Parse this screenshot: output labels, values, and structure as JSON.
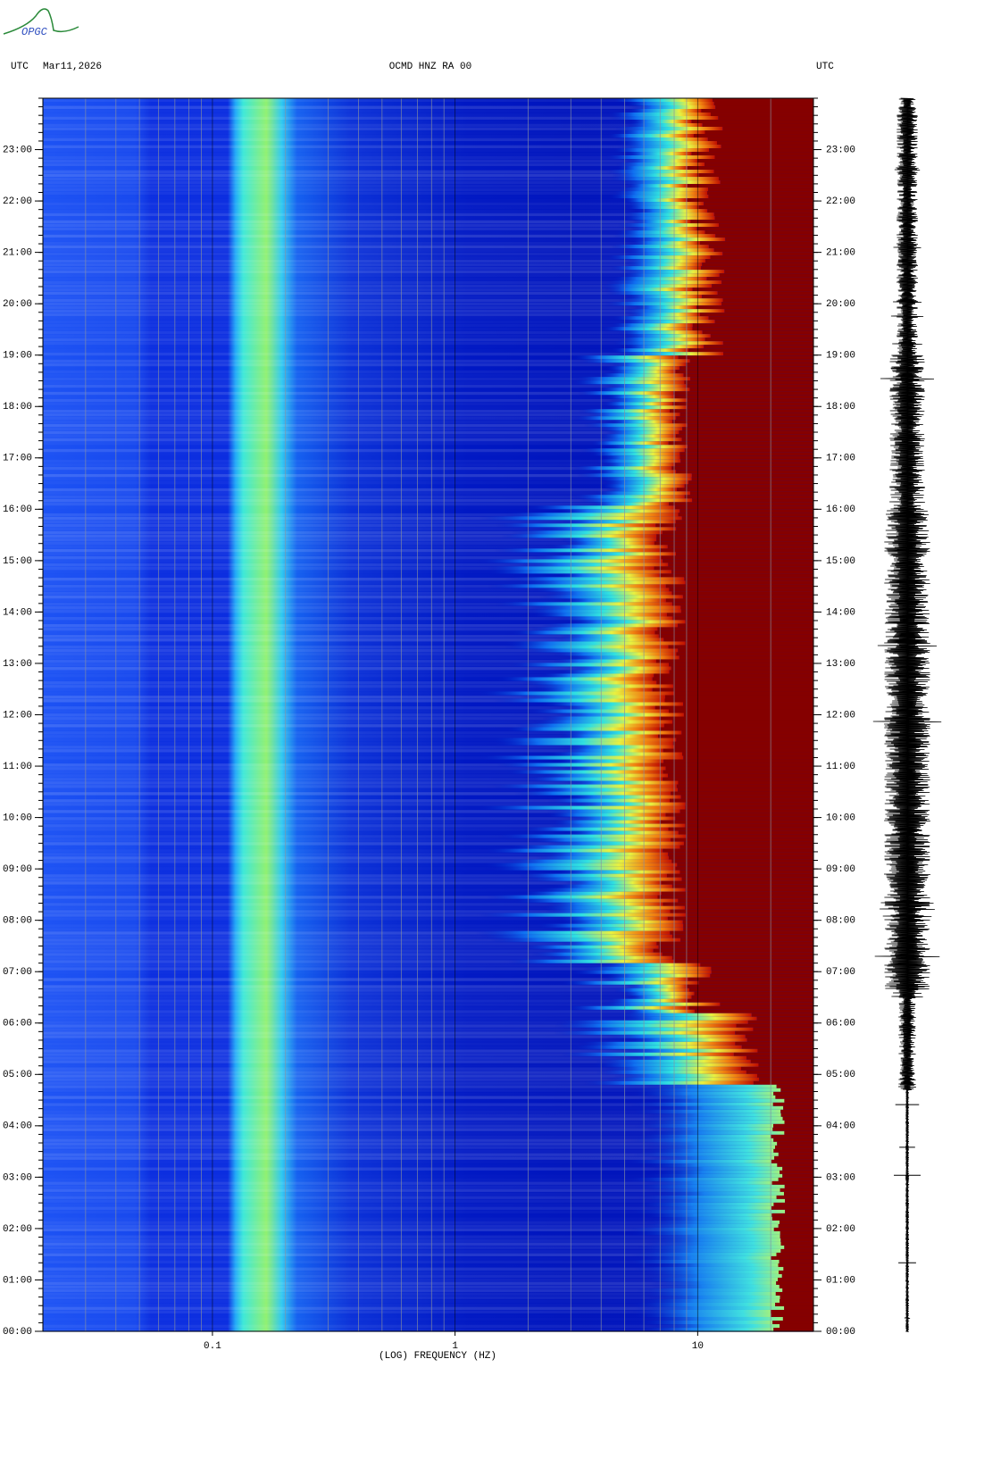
{
  "logo": "OPGC",
  "chart_data": {
    "type": "spectrogram",
    "title": "OCMD HNZ RA 00",
    "time_zone_left": "UTC",
    "date": "Mar11,2026",
    "time_zone_right": "UTC",
    "xlabel": "(LOG) FREQUENCY (HZ)",
    "log_x": true,
    "xlim": [
      0.02,
      30
    ],
    "xticks": [
      0.1,
      1,
      10
    ],
    "ylim": [
      0,
      24
    ],
    "yticks": [
      {
        "value": 0,
        "label": "00:00"
      },
      {
        "value": 1,
        "label": "01:00"
      },
      {
        "value": 2,
        "label": "02:00"
      },
      {
        "value": 3,
        "label": "03:00"
      },
      {
        "value": 4,
        "label": "04:00"
      },
      {
        "value": 5,
        "label": "05:00"
      },
      {
        "value": 6,
        "label": "06:00"
      },
      {
        "value": 7,
        "label": "07:00"
      },
      {
        "value": 8,
        "label": "08:00"
      },
      {
        "value": 9,
        "label": "09:00"
      },
      {
        "value": 10,
        "label": "10:00"
      },
      {
        "value": 11,
        "label": "11:00"
      },
      {
        "value": 12,
        "label": "12:00"
      },
      {
        "value": 13,
        "label": "13:00"
      },
      {
        "value": 14,
        "label": "14:00"
      },
      {
        "value": 15,
        "label": "15:00"
      },
      {
        "value": 16,
        "label": "16:00"
      },
      {
        "value": 17,
        "label": "17:00"
      },
      {
        "value": 18,
        "label": "18:00"
      },
      {
        "value": 19,
        "label": "19:00"
      },
      {
        "value": 20,
        "label": "20:00"
      },
      {
        "value": 21,
        "label": "21:00"
      },
      {
        "value": 22,
        "label": "22:00"
      },
      {
        "value": 23,
        "label": "23:00"
      }
    ],
    "grid": true
  }
}
